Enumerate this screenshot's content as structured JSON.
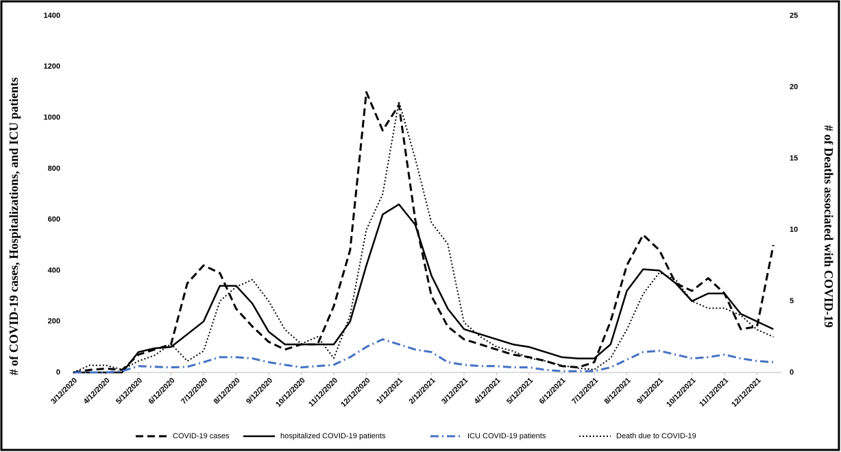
{
  "chart_data": {
    "type": "line",
    "y_label": "# of COVID-19 cases, Hospitalizations, and ICU patients",
    "y2_label": "# of Deaths associated with COVID-19",
    "categories": [
      "3/12/2020",
      null,
      "4/12/2020",
      null,
      "5/12/2020",
      null,
      "6/12/2020",
      null,
      "7/12/2020",
      null,
      "8/12/2020",
      null,
      "9/12/2020",
      null,
      "10/12/2020",
      null,
      "11/12/2020",
      null,
      "12/12/2020",
      null,
      "1/12/2021",
      null,
      "2/12/2021",
      null,
      "3/12/2021",
      null,
      "4/12/2021",
      null,
      "5/12/2021",
      null,
      "6/12/2021",
      null,
      "7/12/2021",
      null,
      "8/12/2021",
      null,
      "9/12/2021",
      null,
      "10/12/2021",
      null,
      "11/12/2021",
      null,
      "12/12/2021",
      null
    ],
    "ylim": [
      0,
      1400
    ],
    "yticks": [
      0,
      200,
      400,
      600,
      800,
      1000,
      1200,
      1400
    ],
    "y2lim": [
      0,
      25
    ],
    "y2ticks": [
      0,
      5,
      10,
      15,
      20,
      25
    ],
    "legend": "bottom",
    "series": [
      {
        "name": "COVID-19 cases",
        "color": "#000000",
        "style": "dash",
        "values": [
          0,
          10,
          15,
          10,
          70,
          90,
          110,
          350,
          420,
          390,
          250,
          180,
          120,
          90,
          110,
          110,
          260,
          480,
          1100,
          950,
          1050,
          600,
          300,
          180,
          130,
          110,
          90,
          70,
          60,
          45,
          25,
          20,
          40,
          200,
          420,
          540,
          480,
          350,
          320,
          370,
          310,
          170,
          180,
          500
        ]
      },
      {
        "name": "hospitalized COVID-19 patients",
        "color": "#000000",
        "style": "solid",
        "values": [
          0,
          0,
          0,
          0,
          80,
          95,
          100,
          150,
          200,
          340,
          340,
          270,
          160,
          110,
          110,
          110,
          110,
          200,
          420,
          620,
          660,
          580,
          380,
          250,
          170,
          150,
          130,
          110,
          100,
          80,
          60,
          55,
          55,
          110,
          320,
          405,
          400,
          350,
          280,
          310,
          310,
          230,
          200,
          170
        ]
      },
      {
        "name": "ICU COVID-19 patients",
        "color": "#4472c4",
        "style": "dashdot",
        "values": [
          0,
          0,
          0,
          5,
          25,
          22,
          20,
          22,
          40,
          60,
          60,
          55,
          40,
          30,
          20,
          25,
          30,
          60,
          100,
          130,
          110,
          90,
          80,
          40,
          30,
          25,
          25,
          20,
          20,
          10,
          5,
          5,
          5,
          20,
          50,
          80,
          85,
          70,
          55,
          60,
          70,
          55,
          45,
          40
        ]
      },
      {
        "name": "Death due to COVID-19",
        "color": "#000000",
        "style": "dot",
        "axis": "y2",
        "values": [
          0,
          0.5,
          0.5,
          0.2,
          0.8,
          1.2,
          2,
          0.8,
          1.5,
          5,
          6,
          6.5,
          5,
          3,
          2,
          2.5,
          1,
          4,
          10,
          12.5,
          19,
          15,
          10.5,
          9,
          3.5,
          2.5,
          1.8,
          1.5,
          1,
          0.8,
          0.5,
          0.3,
          0.2,
          1,
          3,
          5.5,
          7,
          6.5,
          5,
          4.5,
          4.5,
          4,
          3,
          2.5
        ]
      }
    ]
  }
}
